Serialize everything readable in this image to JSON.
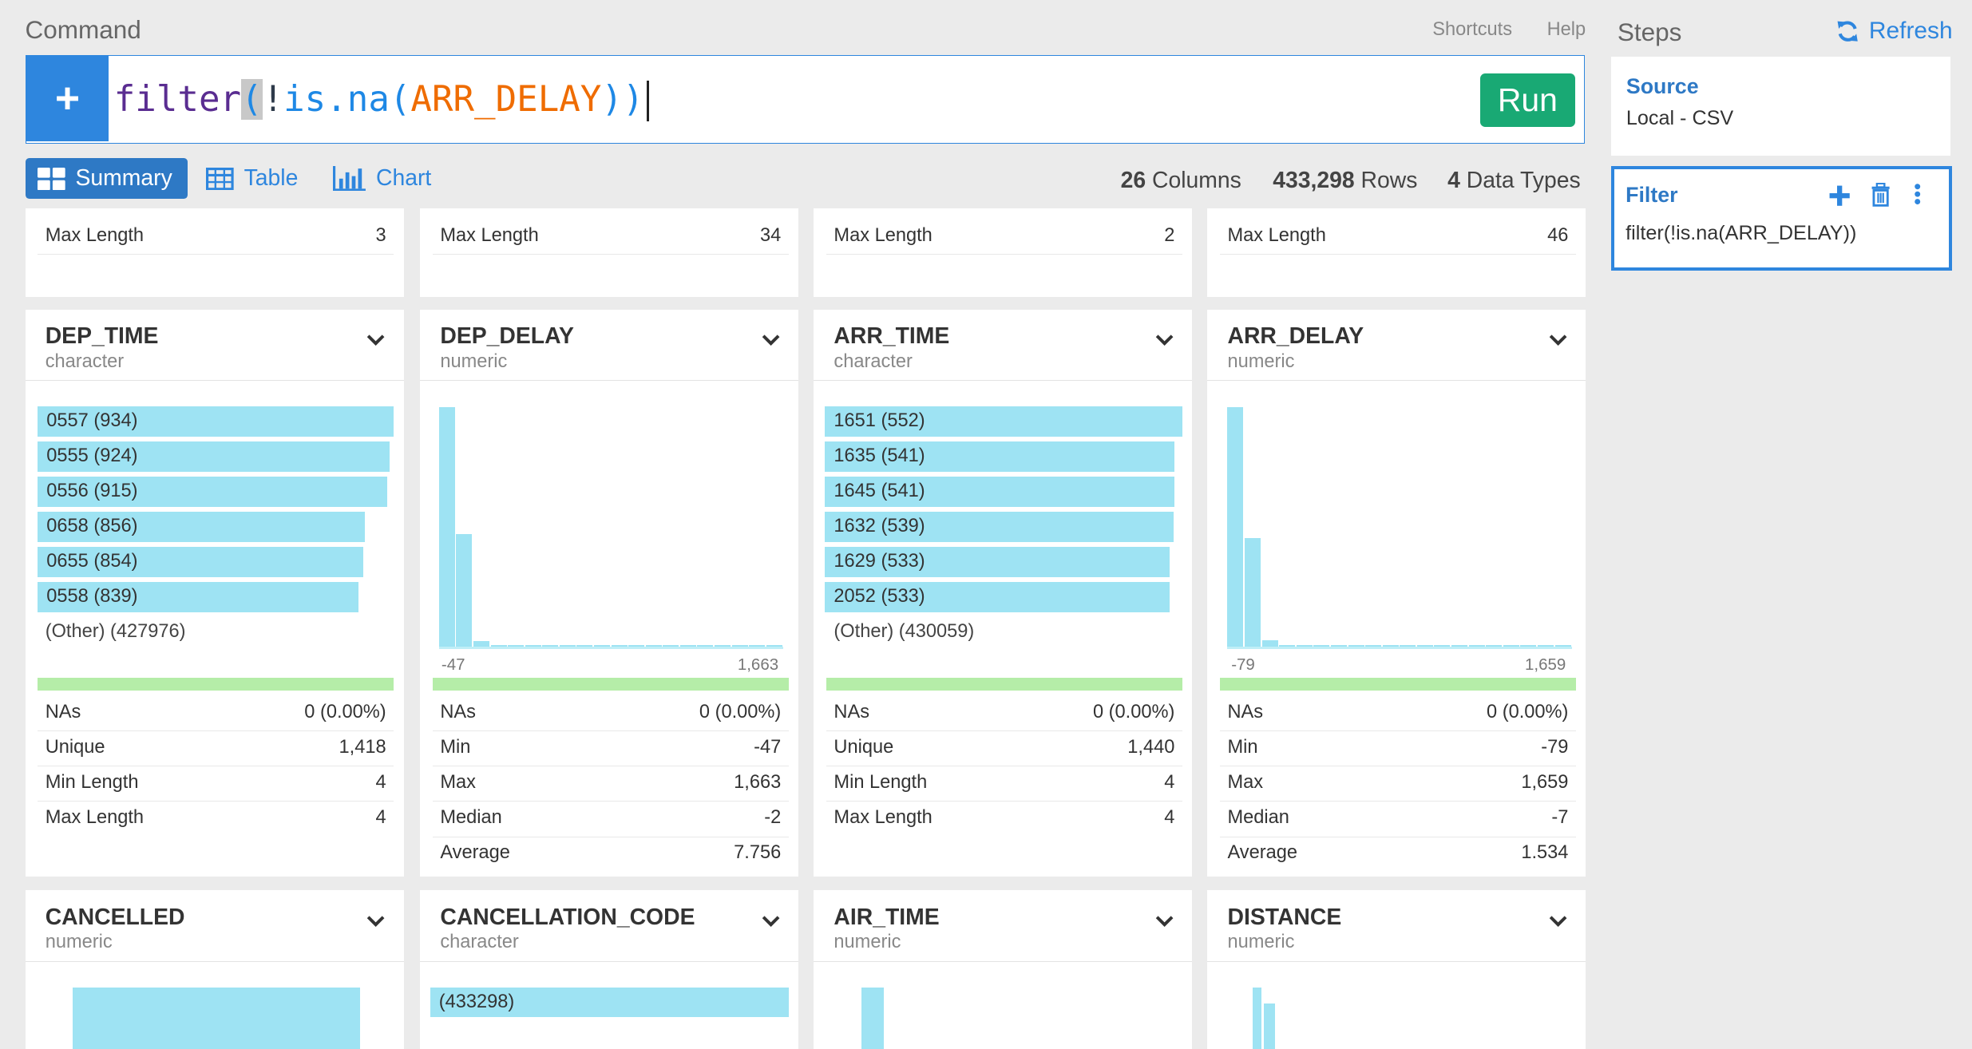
{
  "command": {
    "title": "Command",
    "shortcuts": "Shortcuts",
    "help": "Help",
    "add_symbol": "+",
    "code_fn": "filter",
    "code_open": "(",
    "code_bang": "!",
    "code_isna": "is.na(",
    "code_arg": "ARR_DELAY",
    "code_close": "))",
    "run_label": "Run"
  },
  "tabs": [
    {
      "label": "Summary",
      "icon": "grid-icon",
      "active": true
    },
    {
      "label": "Table",
      "icon": "table-icon",
      "active": false
    },
    {
      "label": "Chart",
      "icon": "bar-chart-icon",
      "active": false
    }
  ],
  "stats": {
    "columns_count": "26",
    "columns_label": "Columns",
    "rows_count": "433,298",
    "rows_label": "Rows",
    "types_count": "4",
    "types_label": "Data Types"
  },
  "top_row": [
    {
      "label": "Max Length",
      "value": "3"
    },
    {
      "label": "Max Length",
      "value": "34"
    },
    {
      "label": "Max Length",
      "value": "2"
    },
    {
      "label": "Max Length",
      "value": "46"
    }
  ],
  "cards": {
    "dep_time": {
      "name": "DEP_TIME",
      "type": "character",
      "bars": [
        {
          "label": "0557 (934)",
          "count": 934
        },
        {
          "label": "0555 (924)",
          "count": 924
        },
        {
          "label": "0556 (915)",
          "count": 915
        },
        {
          "label": "0658 (856)",
          "count": 856
        },
        {
          "label": "0655 (854)",
          "count": 854
        },
        {
          "label": "0558 (839)",
          "count": 839
        }
      ],
      "other": "(Other) (427976)",
      "stats": [
        {
          "label": "NAs",
          "value": "0 (0.00%)"
        },
        {
          "label": "Unique",
          "value": "1,418"
        },
        {
          "label": "Min Length",
          "value": "4"
        },
        {
          "label": "Max Length",
          "value": "4"
        }
      ]
    },
    "dep_delay": {
      "name": "DEP_DELAY",
      "type": "numeric",
      "hist_min": "-47",
      "hist_max": "1,663",
      "hist": [
        1.0,
        0.47,
        0.02,
        0.006,
        0.004,
        0.003,
        0.002,
        0.002,
        0.002,
        0.002,
        0.002,
        0.001,
        0.001,
        0.001,
        0.001,
        0.001,
        0.001,
        0.001,
        0.001,
        0.001
      ],
      "stats": [
        {
          "label": "NAs",
          "value": "0 (0.00%)"
        },
        {
          "label": "Min",
          "value": "-47"
        },
        {
          "label": "Max",
          "value": "1,663"
        },
        {
          "label": "Median",
          "value": "-2"
        },
        {
          "label": "Average",
          "value": "7.756"
        }
      ]
    },
    "arr_time": {
      "name": "ARR_TIME",
      "type": "character",
      "bars": [
        {
          "label": "1651 (552)",
          "count": 552
        },
        {
          "label": "1635 (541)",
          "count": 541
        },
        {
          "label": "1645 (541)",
          "count": 541
        },
        {
          "label": "1632 (539)",
          "count": 539
        },
        {
          "label": "1629 (533)",
          "count": 533
        },
        {
          "label": "2052 (533)",
          "count": 533
        }
      ],
      "other": "(Other) (430059)",
      "stats": [
        {
          "label": "NAs",
          "value": "0 (0.00%)"
        },
        {
          "label": "Unique",
          "value": "1,440"
        },
        {
          "label": "Min Length",
          "value": "4"
        },
        {
          "label": "Max Length",
          "value": "4"
        }
      ]
    },
    "arr_delay": {
      "name": "ARR_DELAY",
      "type": "numeric",
      "hist_min": "-79",
      "hist_max": "1,659",
      "hist": [
        1.0,
        0.45,
        0.025,
        0.006,
        0.004,
        0.003,
        0.002,
        0.002,
        0.002,
        0.002,
        0.002,
        0.001,
        0.001,
        0.001,
        0.001,
        0.001,
        0.001,
        0.001,
        0.001,
        0.001
      ],
      "stats": [
        {
          "label": "NAs",
          "value": "0 (0.00%)"
        },
        {
          "label": "Min",
          "value": "-79"
        },
        {
          "label": "Max",
          "value": "1,659"
        },
        {
          "label": "Median",
          "value": "-7"
        },
        {
          "label": "Average",
          "value": "1.534"
        }
      ]
    },
    "cancelled": {
      "name": "CANCELLED",
      "type": "numeric"
    },
    "cancellation_code": {
      "name": "CANCELLATION_CODE",
      "type": "character",
      "bar_label": "(433298)"
    },
    "air_time": {
      "name": "AIR_TIME",
      "type": "numeric"
    },
    "distance": {
      "name": "DISTANCE",
      "type": "numeric"
    }
  },
  "steps": {
    "title": "Steps",
    "refresh": "Refresh",
    "source_title": "Source",
    "source_value": "Local - CSV",
    "filter_title": "Filter",
    "filter_value": "filter(!is.na(ARR_DELAY))"
  },
  "colors": {
    "accent": "#2e86de",
    "run_green": "#19a974",
    "bar_cyan": "#9ee3f3",
    "na_green": "#b5eda8"
  }
}
